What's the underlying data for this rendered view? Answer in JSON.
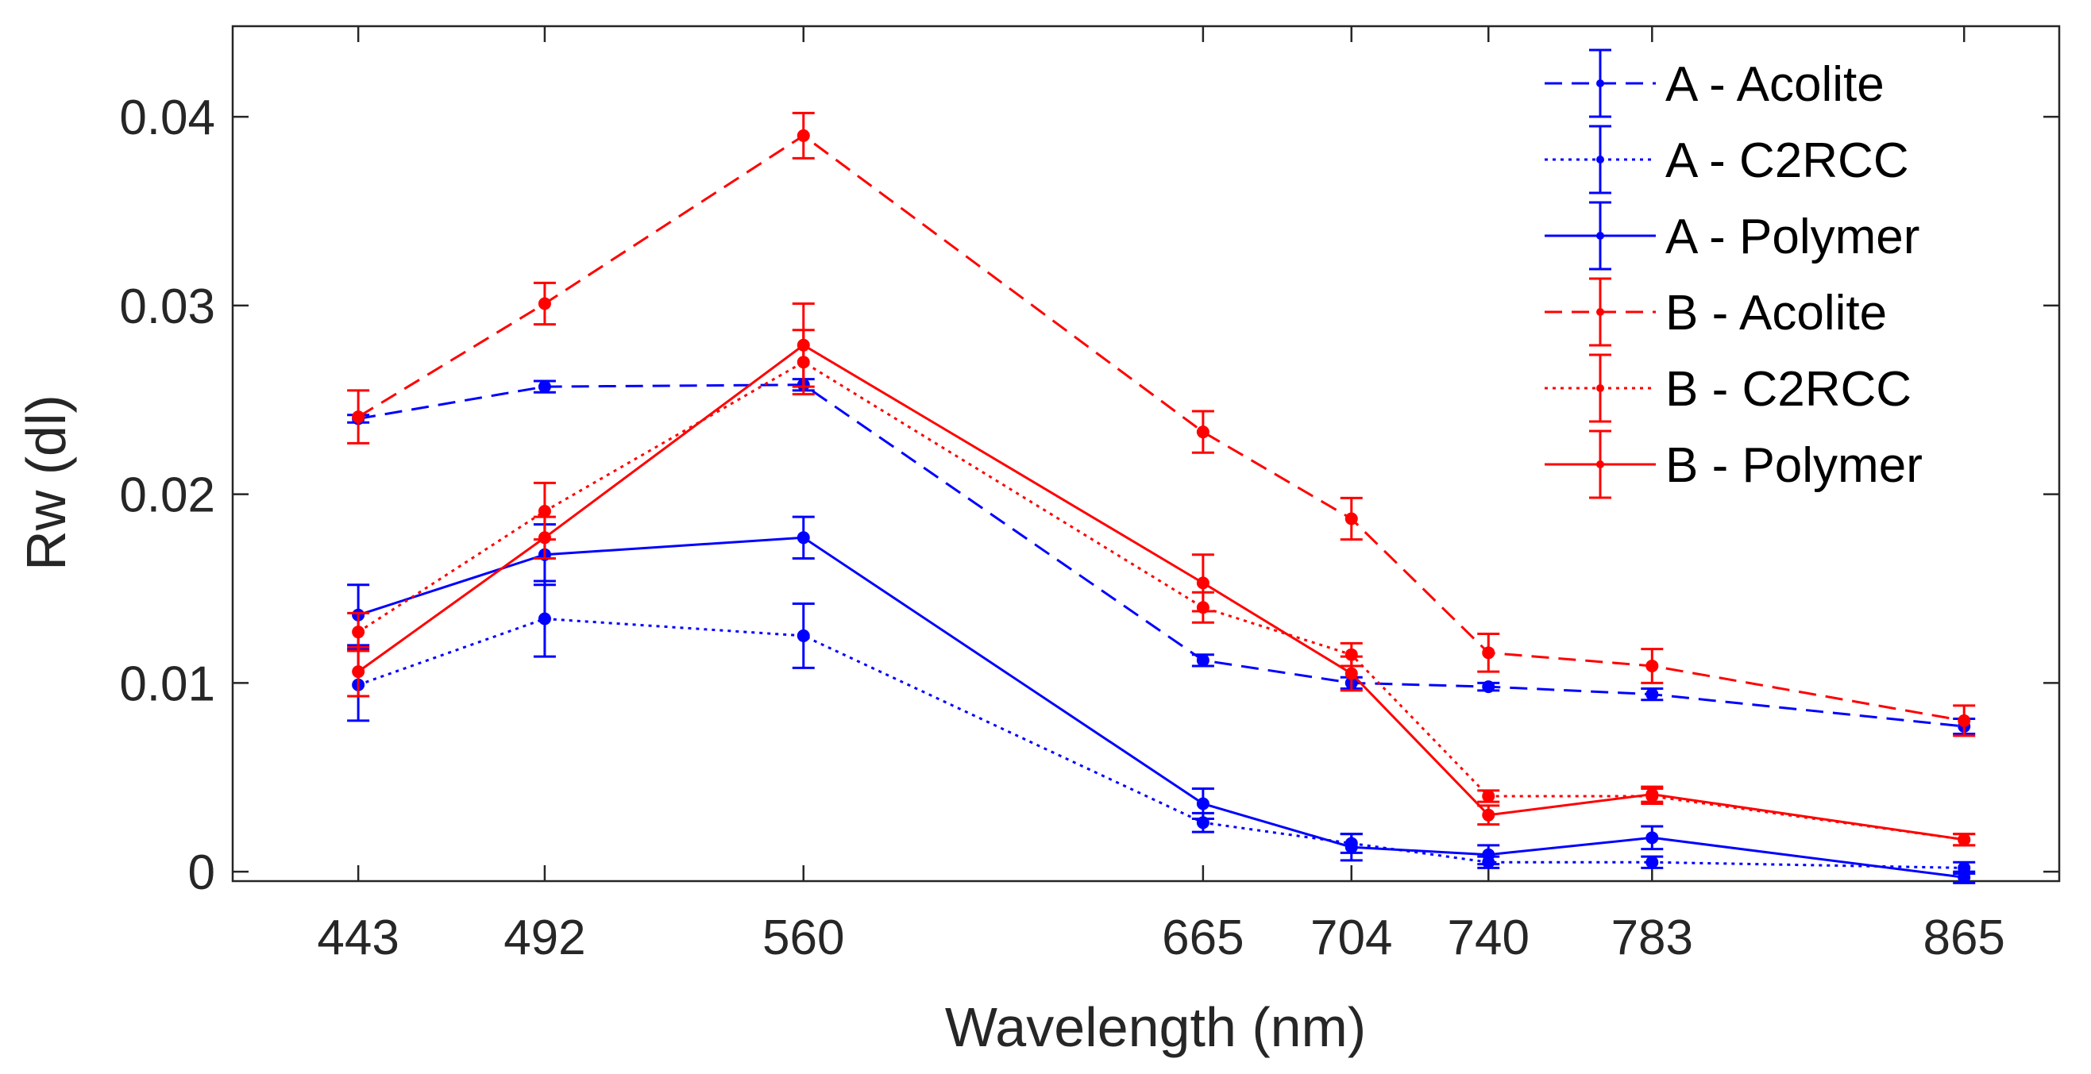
{
  "chart_data": {
    "type": "line",
    "title": "",
    "xlabel": "Wavelength (nm)",
    "ylabel": "Rw (dl)",
    "x": [
      443,
      492,
      560,
      665,
      704,
      740,
      783,
      865
    ],
    "x_tick_labels": [
      "443",
      "492",
      "560",
      "665",
      "704",
      "740",
      "783",
      "865"
    ],
    "y_ticks": [
      0,
      0.01,
      0.02,
      0.03,
      0.04
    ],
    "y_tick_labels": [
      "0",
      "0.01",
      "0.02",
      "0.03",
      "0.04"
    ],
    "xlim": [
      410,
      890
    ],
    "ylim": [
      -0.0005,
      0.0448
    ],
    "grid": false,
    "legend_position": "top-right",
    "series": [
      {
        "name": "A - Acolite",
        "color": "#0000ff",
        "linestyle": "dashed",
        "values": [
          0.024,
          0.0257,
          0.0258,
          0.0112,
          0.01,
          0.0098,
          0.0094,
          0.0077
        ],
        "errors": [
          0.0002,
          0.0003,
          0.0003,
          0.0003,
          0.0003,
          0.0002,
          0.0003,
          0.0004
        ]
      },
      {
        "name": "A - C2RCC",
        "color": "#0000ff",
        "linestyle": "dotted",
        "values": [
          0.0099,
          0.0134,
          0.0125,
          0.0026,
          0.0015,
          0.0005,
          0.0005,
          0.0002
        ],
        "errors": [
          0.0019,
          0.002,
          0.0017,
          0.0005,
          0.0005,
          0.0003,
          0.0003,
          0.0003
        ]
      },
      {
        "name": "A - Polymer",
        "color": "#0000ff",
        "linestyle": "solid",
        "values": [
          0.0136,
          0.0168,
          0.0177,
          0.0036,
          0.0013,
          0.0009,
          0.0018,
          -0.0003
        ],
        "errors": [
          0.0016,
          0.0016,
          0.0011,
          0.0008,
          0.0007,
          0.0005,
          0.0006,
          0.0003
        ]
      },
      {
        "name": "B - Acolite",
        "color": "#ff0000",
        "linestyle": "dashed",
        "values": [
          0.0241,
          0.0301,
          0.039,
          0.0233,
          0.0187,
          0.0116,
          0.0109,
          0.008
        ],
        "errors": [
          0.0014,
          0.0011,
          0.0012,
          0.0011,
          0.0011,
          0.001,
          0.0009,
          0.0008
        ]
      },
      {
        "name": "B - C2RCC",
        "color": "#ff0000",
        "linestyle": "dotted",
        "values": [
          0.0127,
          0.0191,
          0.027,
          0.014,
          0.0115,
          0.004,
          0.004,
          0.0017
        ],
        "errors": [
          0.001,
          0.0015,
          0.0017,
          0.0008,
          0.0006,
          0.0003,
          0.0004,
          0.0003
        ]
      },
      {
        "name": "B - Polymer",
        "color": "#ff0000",
        "linestyle": "solid",
        "values": [
          0.0106,
          0.0177,
          0.0279,
          0.0153,
          0.0105,
          0.003,
          0.0041,
          0.0017
        ],
        "errors": [
          0.0013,
          0.0011,
          0.0022,
          0.0015,
          0.0009,
          0.0005,
          0.0004,
          0.0003
        ]
      }
    ]
  }
}
